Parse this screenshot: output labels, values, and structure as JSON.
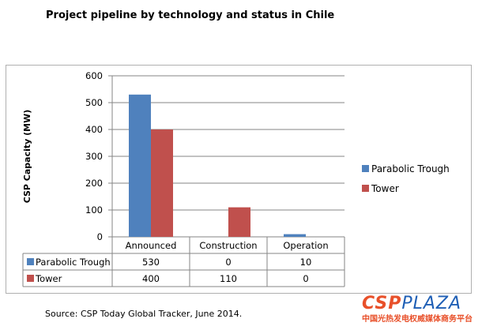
{
  "chart_data": {
    "type": "bar",
    "title": "Project pipeline by technology and status in Chile",
    "ylabel": "CSP Capacity (MW)",
    "xlabel": "",
    "categories": [
      "Announced",
      "Construction",
      "Operation"
    ],
    "series": [
      {
        "name": "Parabolic Trough",
        "values": [
          530,
          0,
          10
        ],
        "color": "#4f81bd"
      },
      {
        "name": "Tower",
        "values": [
          400,
          110,
          0
        ],
        "color": "#c0504d"
      }
    ],
    "ylim": [
      0,
      600
    ],
    "yticks": [
      0,
      100,
      200,
      300,
      400,
      500,
      600
    ],
    "grid": true,
    "legend": "right",
    "data_table": true
  },
  "source": "Source: CSP Today Global Tracker, June 2014.",
  "logo": {
    "part1": "CSP",
    "part2": "PLAZA",
    "subtitle": "中国光热发电权威媒体商务平台"
  }
}
